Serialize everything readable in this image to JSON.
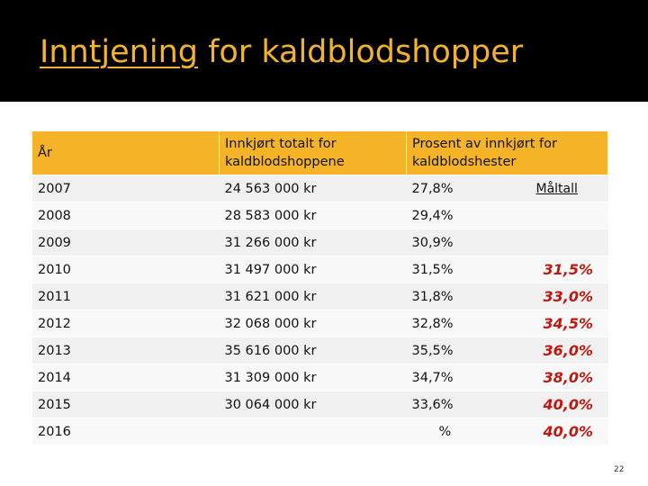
{
  "slide": {
    "title_underlined": "Inntjening",
    "title_rest": " for kaldblodshopper",
    "page_number": "22"
  },
  "table": {
    "headers": [
      "År",
      "Innkjørt totalt for kaldblodshoppene",
      "Prosent av innkjørt for kaldblodshester",
      "Måltall"
    ],
    "rows": [
      {
        "year": "2007",
        "total": "24 563 000 kr",
        "percent": "27,8%",
        "target": ""
      },
      {
        "year": "2008",
        "total": "28 583 000 kr",
        "percent": "29,4%",
        "target": ""
      },
      {
        "year": "2009",
        "total": "31 266 000 kr",
        "percent": "30,9%",
        "target": ""
      },
      {
        "year": "2010",
        "total": "31 497 000 kr",
        "percent": "31,5%",
        "target": "31,5%"
      },
      {
        "year": "2011",
        "total": "31 621 000 kr",
        "percent": "31,8%",
        "target": "33,0%"
      },
      {
        "year": "2012",
        "total": "32 068 000 kr",
        "percent": "32,8%",
        "target": "34,5%"
      },
      {
        "year": "2013",
        "total": "35 616 000 kr",
        "percent": "35,5%",
        "target": "36,0%"
      },
      {
        "year": "2014",
        "total": "31 309 000 kr",
        "percent": "34,7%",
        "target": "38,0%"
      },
      {
        "year": "2015",
        "total": "30 064 000 kr",
        "percent": "33,6%",
        "target": "40,0%"
      },
      {
        "year": "2016",
        "total": "",
        "percent": "%",
        "target": "40,0%"
      }
    ]
  }
}
